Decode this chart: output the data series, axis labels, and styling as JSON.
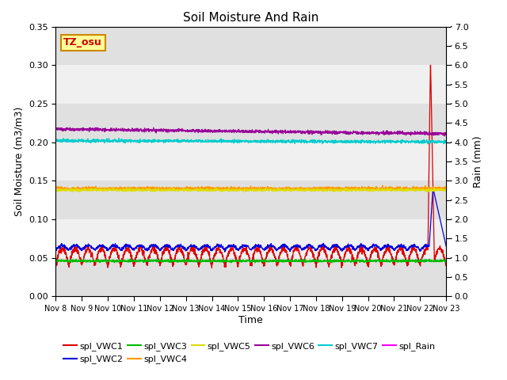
{
  "title": "Soil Moisture And Rain",
  "xlabel": "Time",
  "ylabel_left": "Soil Moisture (m3/m3)",
  "ylabel_right": "Rain (mm)",
  "station_label": "TZ_osu",
  "ylim_left": [
    0.0,
    0.35
  ],
  "ylim_right": [
    0.0,
    7.0
  ],
  "x_ticks_labels": [
    "Nov 8",
    "Nov 9",
    "Nov 10",
    "Nov 11",
    "Nov 12",
    "Nov 13",
    "Nov 14",
    "Nov 15",
    "Nov 16",
    "Nov 17",
    "Nov 18",
    "Nov 19",
    "Nov 20",
    "Nov 21",
    "Nov 22",
    "Nov 23"
  ],
  "series_order": [
    "spl_VWC1",
    "spl_VWC2",
    "spl_VWC3",
    "spl_VWC4",
    "spl_VWC5",
    "spl_VWC6",
    "spl_VWC7"
  ],
  "series_colors": {
    "spl_VWC1": "#dd0000",
    "spl_VWC2": "#0000dd",
    "spl_VWC3": "#00bb00",
    "spl_VWC4": "#ff9900",
    "spl_VWC5": "#dddd00",
    "spl_VWC6": "#990099",
    "spl_VWC7": "#00cccc"
  },
  "rain_color": "#ff00ff",
  "background_color": "#e8e8e8",
  "band_color_light": "#f0f0f0",
  "band_color_dark": "#e0e0e0",
  "legend_items": [
    "spl_VWC1",
    "spl_VWC2",
    "spl_VWC3",
    "spl_VWC4",
    "spl_VWC5",
    "spl_VWC6",
    "spl_VWC7",
    "spl_Rain"
  ],
  "legend_colors": [
    "#dd0000",
    "#0000dd",
    "#00bb00",
    "#ff9900",
    "#dddd00",
    "#990099",
    "#00cccc",
    "#ff00ff"
  ]
}
